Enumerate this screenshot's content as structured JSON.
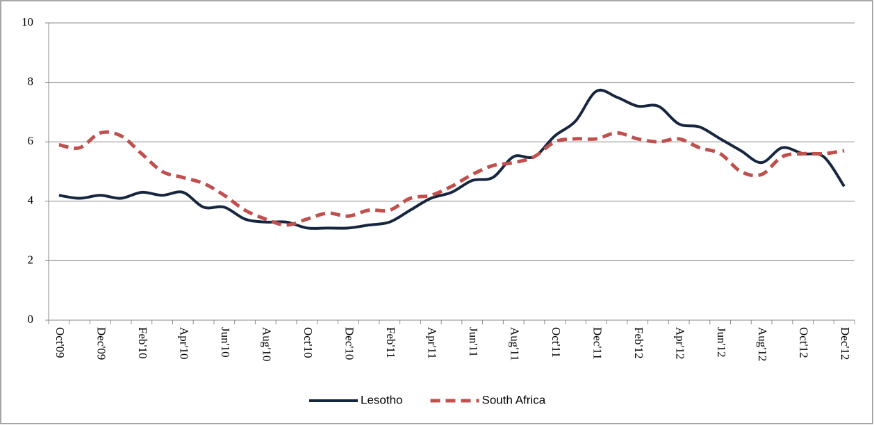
{
  "chart_data": {
    "type": "line",
    "categories": [
      "Oct'09",
      null,
      "Dec'09",
      null,
      "Feb'10",
      null,
      "Apr'10",
      null,
      "Jun'10",
      null,
      "Aug'10",
      null,
      "Oct'10",
      null,
      "Dec'10",
      null,
      "Feb'11",
      null,
      "Apr'11",
      null,
      "Jun'11",
      null,
      "Aug'11",
      null,
      "Oct'11",
      null,
      "Dec'11",
      null,
      "Feb'12",
      null,
      "Apr'12",
      null,
      "Jun'12",
      null,
      "Aug'12",
      null,
      "Oct'12",
      null,
      "Dec'12"
    ],
    "series": [
      {
        "name": "Lesotho",
        "color": "#17263f",
        "dash": false,
        "values": [
          4.2,
          4.1,
          4.2,
          4.1,
          4.3,
          4.2,
          4.3,
          3.8,
          3.8,
          3.4,
          3.3,
          3.3,
          3.1,
          3.1,
          3.1,
          3.2,
          3.3,
          3.7,
          4.1,
          4.3,
          4.7,
          4.8,
          5.5,
          5.5,
          6.2,
          6.7,
          7.7,
          7.5,
          7.2,
          7.2,
          6.6,
          6.5,
          6.1,
          5.7,
          5.3,
          5.8,
          5.6,
          5.5,
          4.5
        ]
      },
      {
        "name": "South Africa",
        "color": "#c0504d",
        "dash": true,
        "values": [
          5.9,
          5.8,
          6.3,
          6.2,
          5.6,
          5.0,
          4.8,
          4.6,
          4.2,
          3.7,
          3.4,
          3.2,
          3.4,
          3.6,
          3.5,
          3.7,
          3.7,
          4.1,
          4.2,
          4.5,
          4.9,
          5.2,
          5.3,
          5.5,
          6.0,
          6.1,
          6.1,
          6.3,
          6.1,
          6.0,
          6.1,
          5.8,
          5.6,
          5.0,
          4.9,
          5.5,
          5.6,
          5.6,
          5.7
        ]
      }
    ],
    "ylim": [
      0,
      10
    ],
    "yticks": [
      0,
      2,
      4,
      6,
      8,
      10
    ],
    "grid": true,
    "legend": "bottom"
  }
}
